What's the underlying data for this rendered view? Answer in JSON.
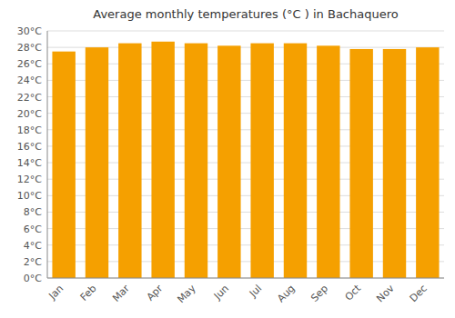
{
  "chart_data": {
    "type": "bar",
    "title": "Average monthly temperatures (°C ) in Bachaquero",
    "categories": [
      "Jan",
      "Feb",
      "Mar",
      "Apr",
      "May",
      "Jun",
      "Jul",
      "Aug",
      "Sep",
      "Oct",
      "Nov",
      "Dec"
    ],
    "values": [
      27.5,
      28.0,
      28.5,
      28.7,
      28.5,
      28.2,
      28.5,
      28.5,
      28.2,
      27.8,
      27.8,
      28.0
    ],
    "color": "#F5A000",
    "ylim": [
      0,
      30
    ],
    "yticks": [
      {
        "value": 0,
        "label": "0°C"
      },
      {
        "value": 2,
        "label": "2°C"
      },
      {
        "value": 4,
        "label": "4°C"
      },
      {
        "value": 6,
        "label": "6°C"
      },
      {
        "value": 8,
        "label": "8°C"
      },
      {
        "value": 10,
        "label": "10°C"
      },
      {
        "value": 12,
        "label": "12°C"
      },
      {
        "value": 14,
        "label": "14°C"
      },
      {
        "value": 16,
        "label": "16°C"
      },
      {
        "value": 18,
        "label": "18°C"
      },
      {
        "value": 20,
        "label": "20°C"
      },
      {
        "value": 22,
        "label": "22°C"
      },
      {
        "value": 24,
        "label": "24°C"
      },
      {
        "value": 26,
        "label": "26°C"
      },
      {
        "value": 28,
        "label": "28°C"
      },
      {
        "value": 30,
        "label": "30°C"
      }
    ],
    "grid": true
  }
}
